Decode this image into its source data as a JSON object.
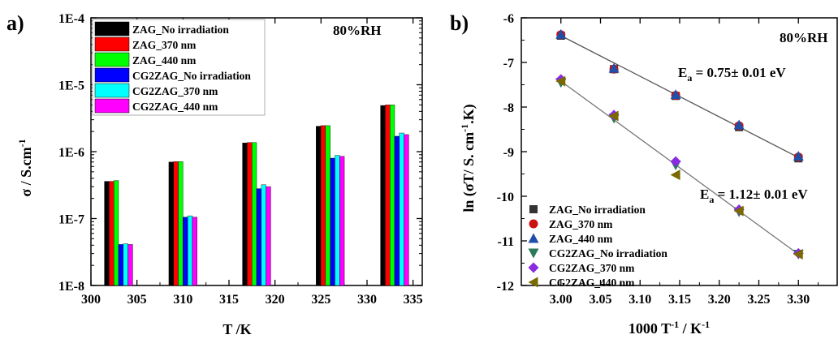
{
  "panel_a": {
    "letter": "a)",
    "annotation": "80%RH",
    "ylabel": "σ / S.cm",
    "ylabel_sup": "-1",
    "xlabel": "T /K"
  },
  "panel_b": {
    "letter": "b)",
    "annotation": "80%RH",
    "ylabel_parts": [
      "ln (σT/ S. cm",
      "-1",
      ".K)"
    ],
    "xlabel_parts": [
      "1000 T",
      "-1",
      " / K",
      "-1"
    ],
    "ea1": {
      "main": "E",
      "sub": "a",
      "rest": " = 0.75± 0.01 eV"
    },
    "ea2": {
      "main": "E",
      "sub": "a",
      "rest": " = 1.12± 0.01 eV"
    }
  },
  "chart_data": [
    {
      "type": "bar",
      "xlabel": "T /K",
      "ylabel": "σ / S.cm-1",
      "yscale": "log",
      "ylim": [
        1e-08,
        0.0001
      ],
      "xlim": [
        300,
        336
      ],
      "xticks": [
        300,
        305,
        310,
        315,
        320,
        325,
        330,
        335
      ],
      "yticks": [
        1e-08,
        1e-07,
        1e-06,
        1e-05,
        0.0001
      ],
      "ytick_labels": [
        "1E-8",
        "1E-7",
        "1E-6",
        "1E-5",
        "1E-4"
      ],
      "temperatures": [
        303,
        310,
        318,
        326,
        333
      ],
      "legend": "top-left",
      "series": [
        {
          "name": "ZAG_No irradiation",
          "color": "#000000",
          "values": [
            3.6e-07,
            7e-07,
            1.35e-06,
            2.4e-06,
            4.9e-06
          ]
        },
        {
          "name": "ZAG_370 nm",
          "color": "#ff0000",
          "values": [
            3.6e-07,
            7.1e-07,
            1.37e-06,
            2.45e-06,
            5e-06
          ]
        },
        {
          "name": "ZAG_440 nm",
          "color": "#00ff00",
          "values": [
            3.7e-07,
            7.1e-07,
            1.37e-06,
            2.45e-06,
            5e-06
          ]
        },
        {
          "name": "CG2ZAG_No irradiation",
          "color": "#0000ff",
          "values": [
            4.1e-08,
            1.05e-07,
            2.8e-07,
            8e-07,
            1.7e-06
          ]
        },
        {
          "name": "CG2ZAG_370 nm",
          "color": "#00ffff",
          "values": [
            4.2e-08,
            1.1e-07,
            3.2e-07,
            8.8e-07,
            1.9e-06
          ]
        },
        {
          "name": "CG2ZAG_440 nm",
          "color": "#ff00ff",
          "values": [
            4.1e-08,
            1.05e-07,
            3e-07,
            8.5e-07,
            1.8e-06
          ]
        }
      ]
    },
    {
      "type": "scatter",
      "xlabel": "1000 T-1 / K-1",
      "ylabel": "ln (σT/ S. cm-1.K)",
      "xlim": [
        2.95,
        3.35
      ],
      "ylim": [
        -12,
        -6
      ],
      "xticks": [
        3.0,
        3.05,
        3.1,
        3.15,
        3.2,
        3.25,
        3.3
      ],
      "xtick_labels": [
        "3.00",
        "3.05",
        "3.10",
        "3.15",
        "3.20",
        "3.25",
        "3.30"
      ],
      "yticks": [
        -12,
        -11,
        -10,
        -9,
        -8,
        -7,
        -6
      ],
      "x": [
        3.0,
        3.067,
        3.145,
        3.225,
        3.3
      ],
      "legend": "bottom-left",
      "series": [
        {
          "name": "ZAG_No irradiation",
          "color": "#333333",
          "marker": "square",
          "values": [
            -6.4,
            -7.15,
            -7.75,
            -8.45,
            -9.15
          ]
        },
        {
          "name": "ZAG_370 nm",
          "color": "#cc1111",
          "marker": "circle",
          "values": [
            -6.38,
            -7.15,
            -7.74,
            -8.42,
            -9.12
          ]
        },
        {
          "name": "ZAG_440 nm",
          "color": "#1f4fa8",
          "marker": "triangle-up",
          "values": [
            -6.37,
            -7.13,
            -7.72,
            -8.4,
            -9.1
          ]
        },
        {
          "name": "CG2ZAG_No irradiation",
          "color": "#2a7a5a",
          "marker": "triangle-down",
          "values": [
            -7.45,
            -8.25,
            -9.3,
            -10.35,
            -11.3
          ]
        },
        {
          "name": "CG2ZAG_370 nm",
          "color": "#8a2be2",
          "marker": "diamond",
          "values": [
            -7.38,
            -8.18,
            -9.22,
            -10.3,
            -11.28
          ]
        },
        {
          "name": "CG2ZAG_440 nm",
          "color": "#7a6a00",
          "marker": "triangle-left",
          "values": [
            -7.42,
            -8.2,
            -9.52,
            -10.33,
            -11.3
          ]
        }
      ],
      "fits": [
        {
          "x": [
            3.0,
            3.3
          ],
          "y": [
            -6.4,
            -9.13
          ],
          "color": "#555555",
          "label": "Ea = 0.75± 0.01 eV"
        },
        {
          "x": [
            3.0,
            3.3
          ],
          "y": [
            -7.42,
            -11.3
          ],
          "color": "#777777",
          "label": "Ea = 1.12± 0.01 eV"
        }
      ]
    }
  ]
}
